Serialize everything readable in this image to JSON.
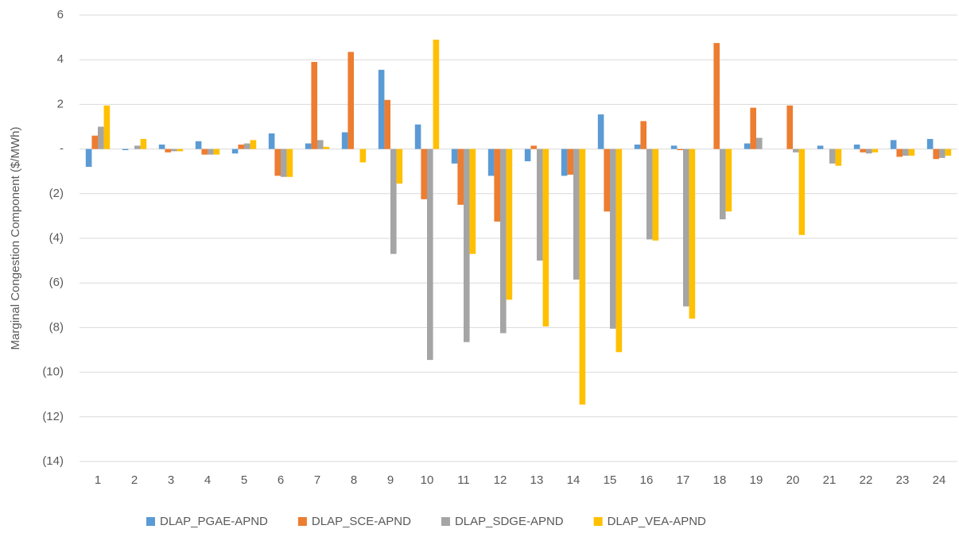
{
  "chart_data": {
    "type": "bar",
    "y_label": "Marginal Congestion Component ($/MWh)",
    "categories": [
      "1",
      "2",
      "3",
      "4",
      "5",
      "6",
      "7",
      "8",
      "9",
      "10",
      "11",
      "12",
      "13",
      "14",
      "15",
      "16",
      "17",
      "18",
      "19",
      "20",
      "21",
      "22",
      "23",
      "24"
    ],
    "series": [
      {
        "name": "DLAP_PGAE-APND",
        "color": "#5b9bd5",
        "values": [
          -0.8,
          -0.05,
          0.2,
          0.35,
          -0.2,
          0.7,
          0.25,
          0.75,
          3.55,
          1.1,
          -0.65,
          -1.2,
          -0.55,
          -1.2,
          1.55,
          0.2,
          0.15,
          0,
          0.25,
          0,
          0.15,
          0.2,
          0.4,
          0.45
        ]
      },
      {
        "name": "DLAP_SCE-APND",
        "color": "#ed7d31",
        "values": [
          0.6,
          0,
          -0.15,
          -0.25,
          0.2,
          -1.2,
          3.9,
          4.35,
          2.2,
          -2.25,
          -2.5,
          -3.25,
          0.15,
          -1.15,
          -2.8,
          1.25,
          -0.05,
          4.75,
          1.85,
          1.95,
          0,
          -0.15,
          -0.35,
          -0.45
        ]
      },
      {
        "name": "DLAP_SDGE-APND",
        "color": "#a5a5a5",
        "values": [
          1.0,
          0.15,
          -0.1,
          -0.25,
          0.25,
          -1.25,
          0.4,
          0,
          -4.7,
          -9.45,
          -8.65,
          -8.25,
          -5.0,
          -5.85,
          -8.05,
          -4.05,
          -7.05,
          -3.15,
          0.5,
          -0.15,
          -0.65,
          -0.2,
          -0.3,
          -0.4
        ]
      },
      {
        "name": "DLAP_VEA-APND",
        "color": "#ffc000",
        "values": [
          1.95,
          0.45,
          -0.1,
          -0.25,
          0.4,
          -1.25,
          0.1,
          -0.6,
          -1.55,
          4.9,
          -4.7,
          -6.75,
          -7.95,
          -11.45,
          -9.1,
          -4.1,
          -7.6,
          -2.8,
          0,
          -3.85,
          -0.75,
          -0.15,
          -0.3,
          -0.3
        ]
      }
    ],
    "ylim": [
      -14,
      6
    ],
    "yticks": [
      6,
      4,
      2,
      {
        "value": 0,
        "label": "-"
      },
      {
        "value": -2,
        "label": "(2)"
      },
      {
        "value": -4,
        "label": "(4)"
      },
      {
        "value": -6,
        "label": "(6)"
      },
      {
        "value": -8,
        "label": "(8)"
      },
      {
        "value": -10,
        "label": "(10)"
      },
      {
        "value": -12,
        "label": "(12)"
      },
      {
        "value": -14,
        "label": "(14)"
      }
    ],
    "grid": true,
    "legend": "bottom"
  }
}
